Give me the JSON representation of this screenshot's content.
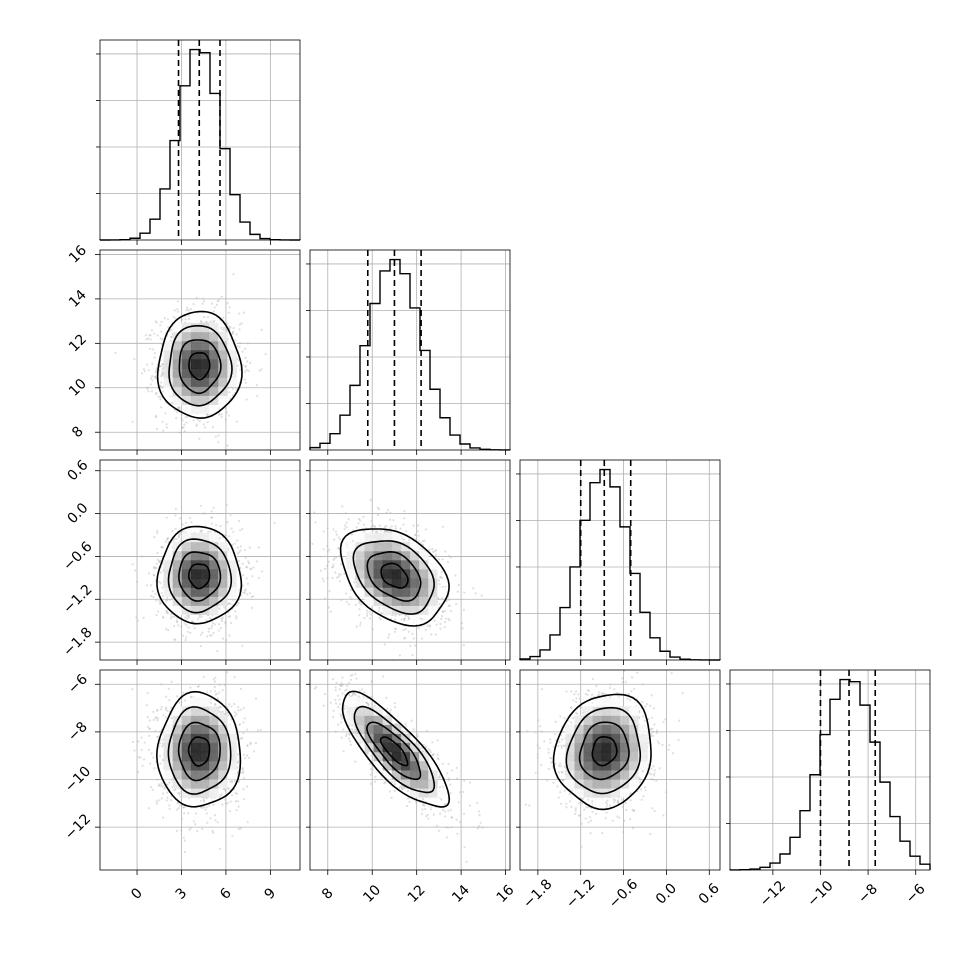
{
  "chart_data": {
    "type": "corner",
    "title": "",
    "parameters": [
      {
        "mean": 4.2,
        "sd": 1.4,
        "q": [
          2.8,
          4.2,
          5.6
        ],
        "xlim": [
          -2.5,
          11
        ],
        "ticks": [
          0,
          3,
          6,
          9
        ],
        "tick_labels": [
          "0",
          "3",
          "6",
          "9"
        ]
      },
      {
        "mean": 11.0,
        "sd": 1.2,
        "q": [
          9.8,
          11.0,
          12.2
        ],
        "xlim": [
          7.2,
          16.2
        ],
        "ticks": [
          8,
          10,
          12,
          14,
          16
        ],
        "tick_labels": [
          "8",
          "10",
          "12",
          "14",
          "16"
        ]
      },
      {
        "mean": -0.87,
        "sd": 0.34,
        "q": [
          -1.2,
          -0.87,
          -0.5
        ],
        "xlim": [
          -2.05,
          0.75
        ],
        "ticks": [
          -1.8,
          -1.2,
          -0.6,
          0.0,
          0.6
        ],
        "tick_labels": [
          "−1.8",
          "−1.2",
          "−0.6",
          "0.0",
          "0.6"
        ]
      },
      {
        "mean": -8.8,
        "sd": 1.2,
        "q": [
          -10.0,
          -8.8,
          -7.7
        ],
        "xlim": [
          -13.8,
          -5.4
        ],
        "ticks": [
          -12,
          -10,
          -8,
          -6
        ],
        "tick_labels": [
          "−12",
          "−10",
          "−8",
          "−6"
        ]
      }
    ],
    "correlations": {
      "1-0": 0.0,
      "2-0": 0.0,
      "2-1": -0.35,
      "3-0": 0.0,
      "3-1": -0.8,
      "3-2": 0.1
    },
    "histogram": {
      "bins": 20
    },
    "contour_levels": [
      0.118,
      0.393,
      0.675,
      0.864
    ],
    "colors": {
      "scatter": "#b8b8b8",
      "density_dark": "#000000",
      "lines": "#000000",
      "grid": "#b0b0b0"
    },
    "grid": true
  }
}
